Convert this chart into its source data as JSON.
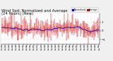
{
  "title1": "Wind Spd: Normalized and Average",
  "title2": "(24 Hours) (New)",
  "title_fontsize": 3.8,
  "background_color": "#f0f0f0",
  "plot_bg_color": "#ffffff",
  "grid_color": "#aaaaaa",
  "n_points": 168,
  "y_min": -1.5,
  "y_max": 2.0,
  "yticks": [
    -1,
    0,
    1
  ],
  "bar_color": "#cc0000",
  "line_color": "#0000cc",
  "legend_labels": [
    "Normalized",
    "Average"
  ],
  "legend_colors": [
    "#0000cc",
    "#cc0000"
  ]
}
